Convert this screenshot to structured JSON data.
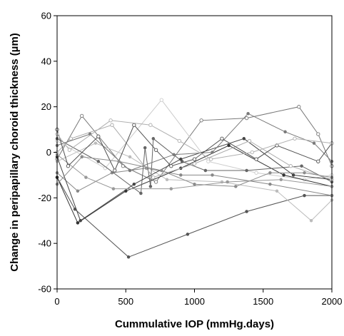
{
  "chart_data": {
    "type": "line",
    "title": "",
    "xlabel": "Cummulative IOP (mmHg.days)",
    "ylabel": "Change in peripapillary choroid thickness (µm)",
    "xlim": [
      0,
      2000
    ],
    "ylim": [
      -60,
      60
    ],
    "x_ticks": [
      0,
      500,
      1000,
      1500,
      2000
    ],
    "y_ticks": [
      60,
      40,
      20,
      0,
      -20,
      -40,
      -60
    ],
    "grid": false,
    "legend": "none",
    "series": [
      {
        "color": "#555555",
        "marker": "filled",
        "x": [
          0,
          130,
          520,
          950,
          1380,
          1800,
          2000
        ],
        "y": [
          -11,
          -25,
          -46,
          -36,
          -26,
          -19,
          -19
        ]
      },
      {
        "color": "#777777",
        "marker": "open",
        "x": [
          0,
          180,
          480,
          720,
          1050,
          1380,
          1760,
          1900,
          2000
        ],
        "y": [
          -3,
          16,
          -6,
          -13,
          14,
          15,
          20,
          8,
          -6
        ]
      },
      {
        "color": "#888888",
        "marker": "filled",
        "x": [
          0,
          150,
          400,
          650,
          900,
          1130,
          1550,
          2000
        ],
        "y": [
          -9,
          -17,
          -9,
          -7,
          -10,
          -10,
          -14,
          -19
        ]
      },
      {
        "color": "#bbbbbb",
        "marker": "filled",
        "x": [
          0,
          280,
          530,
          800,
          1200,
          1600,
          1850,
          2000
        ],
        "y": [
          -4,
          4,
          -2,
          -12,
          -13,
          -17,
          -30,
          -21
        ]
      },
      {
        "color": "#cccccc",
        "marker": "open",
        "x": [
          0,
          350,
          760,
          1100,
          1450,
          1800,
          2000
        ],
        "y": [
          5,
          -7,
          23,
          -4,
          -9,
          -12,
          -10
        ]
      },
      {
        "color": "#333333",
        "marker": "filled",
        "x": [
          0,
          150,
          500,
          900,
          1250,
          1650,
          2000
        ],
        "y": [
          -11,
          -31,
          -17,
          -7,
          3,
          -10,
          -15
        ]
      },
      {
        "color": "#666666",
        "marker": "filled",
        "x": [
          0,
          300,
          610,
          640,
          680,
          700,
          910,
          1080,
          1380,
          1780,
          2000
        ],
        "y": [
          6,
          -4,
          -18,
          2,
          -15,
          6,
          -4,
          -8,
          -8,
          -6,
          -13
        ]
      },
      {
        "color": "#444444",
        "marker": "filled",
        "x": [
          0,
          170,
          560,
          900,
          1360,
          1720,
          2000
        ],
        "y": [
          -2,
          -30,
          -14,
          -3,
          6,
          -10,
          -12
        ]
      },
      {
        "color": "#999999",
        "marker": "filled",
        "x": [
          0,
          210,
          410,
          830,
          1240,
          1630,
          2000
        ],
        "y": [
          -1,
          -11,
          -16,
          -16,
          -13,
          -12,
          -15
        ]
      },
      {
        "color": "#aaaaaa",
        "marker": "open",
        "x": [
          0,
          100,
          400,
          700,
          1000,
          1400,
          1700,
          2000
        ],
        "y": [
          0,
          6,
          12,
          -11,
          -5,
          5,
          -6,
          -12
        ]
      },
      {
        "color": "#7a7a7a",
        "marker": "filled",
        "x": [
          0,
          240,
          530,
          850,
          1130,
          1390,
          1660,
          1870,
          2000
        ],
        "y": [
          3,
          8,
          -8,
          -1,
          0,
          17,
          9,
          4,
          -4
        ]
      },
      {
        "color": "#505050",
        "marker": "open",
        "x": [
          0,
          80,
          300,
          420,
          560,
          720,
          830,
          1000,
          1200,
          1450,
          1600,
          1900,
          2000
        ],
        "y": [
          10,
          -6,
          7,
          -8,
          12,
          1,
          -6,
          -3,
          6,
          -3,
          3,
          -4,
          4
        ]
      },
      {
        "color": "#8c8c8c",
        "marker": "filled",
        "x": [
          0,
          180,
          450,
          760,
          1000,
          1300,
          1550,
          1800,
          2000
        ],
        "y": [
          -14,
          -2,
          -4,
          -8,
          -14,
          -15,
          -9,
          -9,
          -11
        ]
      },
      {
        "color": "#b0b0b0",
        "marker": "open",
        "x": [
          0,
          90,
          390,
          680,
          890,
          1120,
          1420,
          1730,
          2000
        ],
        "y": [
          8,
          1,
          14,
          12,
          5,
          -3,
          0,
          6,
          4
        ]
      }
    ]
  }
}
